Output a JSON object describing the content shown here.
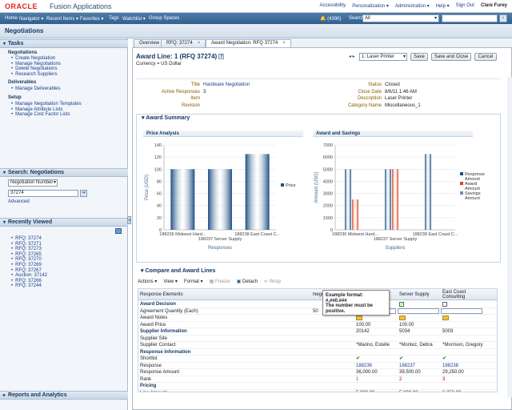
{
  "header": {
    "logo": "ORACLE",
    "app_name": "Fusion Applications",
    "links": [
      "Accessibility",
      "Personalization ▾",
      "Administration ▾",
      "Help ▾",
      "Sign Out"
    ],
    "user": "Clare Furey"
  },
  "nav": {
    "items": [
      "Home",
      "Navigator ▾",
      "Recent Items ▾",
      "Favorites ▾",
      "Tags",
      "Watchlist ▾",
      "Group Spaces"
    ],
    "notifications": "(4390)",
    "search_label": "Search",
    "search_scope": "All"
  },
  "page": {
    "title": "Negotiations"
  },
  "left": {
    "tasks_title": "Tasks",
    "groups": [
      {
        "name": "Negotiations",
        "items": [
          "Create Negotiation",
          "Manage Negotiations",
          "Delete Negotiations",
          "Research Suppliers"
        ]
      },
      {
        "name": "Deliverables",
        "items": [
          "Manage Deliverables"
        ]
      },
      {
        "name": "Setup",
        "items": [
          "Manage Negotiation Templates",
          "Manage Attribute Lists",
          "Manage Cost Factor Lists"
        ]
      }
    ],
    "search_title": "Search: Negotiations",
    "search_field": "Negotiation Number",
    "search_value": "37274",
    "advanced": "Advanced",
    "recent_title": "Recently Viewed",
    "recent": [
      "RFQ: 37274",
      "RFQ: 37271",
      "RFQ: 37273",
      "RFQ: 37265",
      "RFQ: 37270",
      "RFQ: 37269",
      "RFQ: 37267",
      "Auction: 37142",
      "RFQ: 37266",
      "RFQ: 37244"
    ],
    "reports_title": "Reports and Analytics"
  },
  "tabs": [
    {
      "label": "Overview"
    },
    {
      "label": "RFQ: 37274"
    },
    {
      "label": "Award Negotiation: RFQ 37274"
    }
  ],
  "award": {
    "title": "Award Line: 1 (RFQ 37274)",
    "currency": "Currency = US Dollar",
    "line_select": "1: Laser Printer",
    "save": "Save",
    "save_close": "Save and Close",
    "cancel": "Cancel"
  },
  "info": {
    "left": [
      {
        "label": "Title",
        "value": "Hardware Negotiation"
      },
      {
        "label": "Active Responses",
        "value": "3"
      },
      {
        "label": "Item",
        "value": ""
      },
      {
        "label": "Revision",
        "value": ""
      }
    ],
    "right": [
      {
        "label": "Status",
        "value": "Closed"
      },
      {
        "label": "Close Date",
        "value": "8/6/11 1:46 AM"
      },
      {
        "label": "Description",
        "value": "Laser Printer"
      },
      {
        "label": "Category Name",
        "value": "Miscellaneous_1"
      }
    ]
  },
  "summary_title": "Award Summary",
  "chart_data": [
    {
      "type": "bar",
      "title": "Price Analysis",
      "categories": [
        "188236 Midwest Hard...",
        "188237 Server Supply",
        "188238 East Coast C..."
      ],
      "series": [
        {
          "name": "Price",
          "values": [
            100,
            100,
            125
          ]
        }
      ],
      "ylabel": "Price (USD)",
      "xlabel": "Responses",
      "ylim": [
        0,
        140
      ],
      "yticks": [
        0,
        20,
        40,
        60,
        80,
        100,
        120,
        140
      ],
      "colors": [
        "#1f4e83"
      ],
      "legend": "right"
    },
    {
      "type": "bar",
      "title": "Award and Savings",
      "categories": [
        "188236 Midwest Hard...",
        "188237 Server Supply",
        "188238 East Coast C..."
      ],
      "series": [
        {
          "name": "Response Amount",
          "values": [
            5000,
            5000,
            6250
          ]
        },
        {
          "name": "Award Amount",
          "values": [
            2500,
            5000,
            0
          ]
        },
        {
          "name": "Savings Amount",
          "values": [
            0,
            0,
            0
          ]
        }
      ],
      "ylabel": "Amount (USD)",
      "xlabel": "Suppliers",
      "ylim": [
        0,
        7000
      ],
      "yticks": [
        0,
        1000,
        2000,
        3000,
        4000,
        5000,
        6000,
        7000
      ],
      "colors": [
        "#1f4e83",
        "#d9441c",
        "#6f8fb5"
      ],
      "legend": "right"
    }
  ],
  "compare": {
    "title": "Compare and Award Lines",
    "toolbar": [
      "Actions ▾",
      "View ▾",
      "Format ▾",
      "Freeze",
      "Detach",
      "Wrap"
    ],
    "col_header": "Response Elements",
    "col_neg": "Negotiation",
    "col_server": "Server Supply",
    "col_east": "East Coast Consulting",
    "tooltip": [
      "Example format:",
      "#,##0.###",
      "The number must be",
      "positive."
    ],
    "rows": [
      {
        "c0": "Award Decision",
        "sec": true
      },
      {
        "c0": "Agreement Quantity (Each)",
        "c1": "50",
        "c2": "25",
        "c3": "",
        "c4": "25"
      },
      {
        "c0": "Award Notes"
      },
      {
        "c0": "Award Price",
        "c2": "100.00",
        "c3": "100.00"
      },
      {
        "c0": "Supplier Information",
        "sec": true,
        "c2": "20142",
        "c3": "5034",
        "c4": "5003"
      },
      {
        "c0": "Supplier Site"
      },
      {
        "c0": "Supplier Contact",
        "c2": "Marino, Estelle",
        "c3": "Montez, Debra",
        "c4": "Morrison, Gregory"
      },
      {
        "c0": "Response Information",
        "sec": true
      },
      {
        "c0": "Shortlist"
      },
      {
        "c0": "Response",
        "c2": "188236",
        "c3": "188237",
        "c4": "188238"
      },
      {
        "c0": "Response Amount",
        "c2": "36,000.00",
        "c3": "39,500.00",
        "c4": "29,250.00"
      },
      {
        "c0": "Rank",
        "c2": "1",
        "c3": "2",
        "c4": "3"
      },
      {
        "c0": "Pricing",
        "sec": true
      },
      {
        "c0": "Line Amount",
        "c2": "5,000.00",
        "c3": "5,000.00",
        "c4": "6,250.00"
      }
    ]
  }
}
